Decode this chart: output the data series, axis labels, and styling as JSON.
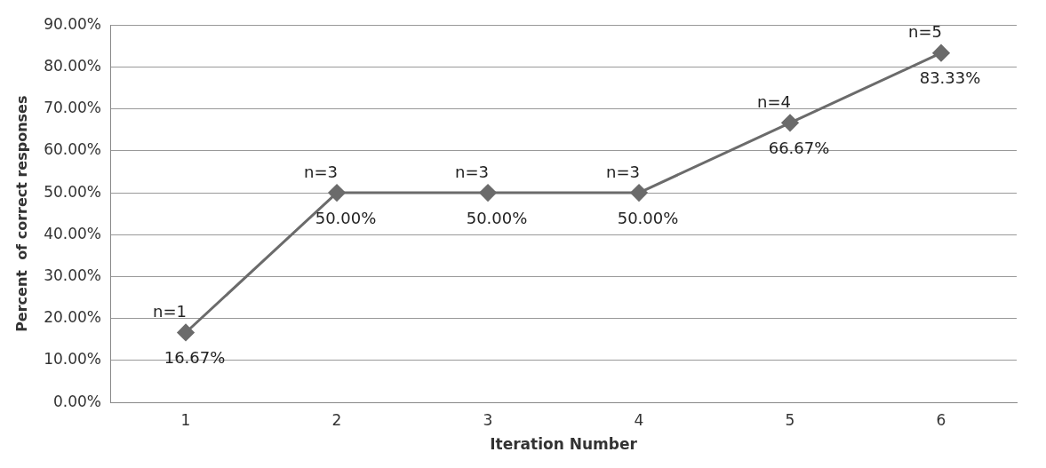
{
  "chart_data": {
    "type": "line",
    "xlabel": "Iteration Number",
    "ylabel": "Percent  of correct responses",
    "categories": [
      "1",
      "2",
      "3",
      "4",
      "5",
      "6"
    ],
    "series": [
      {
        "color": "#6b6b6b",
        "values": [
          16.67,
          50,
          50,
          50,
          66.67,
          83.33
        ],
        "value_labels": [
          "16.67%",
          "50.00%",
          "50.00%",
          "50.00%",
          "66.67%",
          "83.33%"
        ]
      }
    ],
    "ylim": [
      0,
      90
    ],
    "yticks": [
      {
        "value": 0,
        "label": "0.00%"
      },
      {
        "value": 10,
        "label": "10.00%"
      },
      {
        "value": 20,
        "label": "20.00%"
      },
      {
        "value": 30,
        "label": "30.00%"
      },
      {
        "value": 40,
        "label": "40.00%"
      },
      {
        "value": 50,
        "label": "50.00%"
      },
      {
        "value": 60,
        "label": "60.00%"
      },
      {
        "value": 70,
        "label": "70.00%"
      },
      {
        "value": 80,
        "label": "80.00%"
      },
      {
        "value": 90,
        "label": "90.00%"
      }
    ],
    "annotations": [
      {
        "text": "n=1",
        "x": "1",
        "y": 16.67
      },
      {
        "text": "n=3",
        "x": "2",
        "y": 50
      },
      {
        "text": "n=3",
        "x": "3",
        "y": 50
      },
      {
        "text": "n=3",
        "x": "4",
        "y": 50
      },
      {
        "text": "n=4",
        "x": "5",
        "y": 66.67
      },
      {
        "text": "n=5",
        "x": "6",
        "y": 83.33
      }
    ],
    "grid": "y",
    "legend": false,
    "marker": "diamond",
    "line_style": "solid"
  }
}
